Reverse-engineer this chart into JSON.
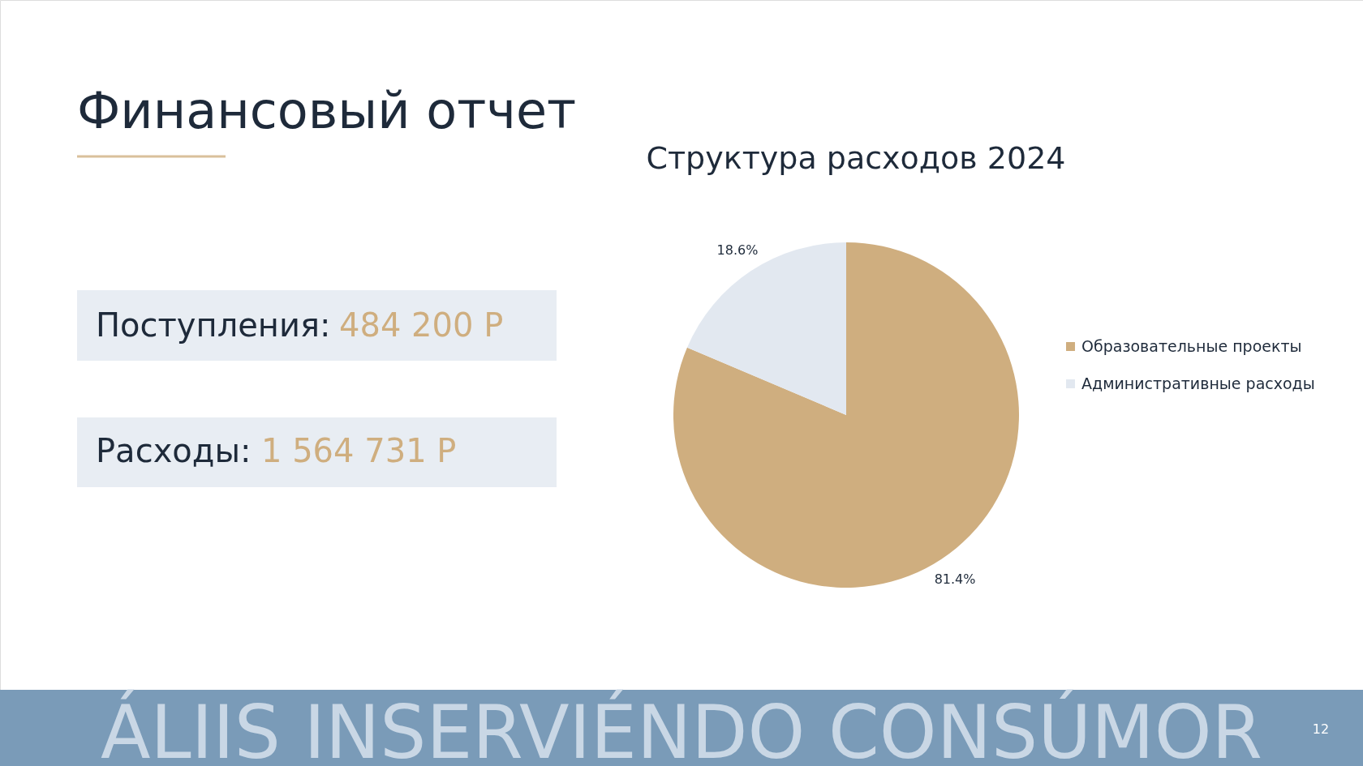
{
  "chart_data": {
    "type": "pie",
    "title": "Финансовый отчет",
    "subtitle": "Структура расходов 2024",
    "categories": [
      "Образовательные проекты",
      "Административные расходы"
    ],
    "values": [
      81.4,
      18.6
    ],
    "colors": [
      "#cfae7f",
      "#e2e8f0"
    ],
    "value_labels": [
      "81.4%",
      "18.6%"
    ],
    "legend": "right",
    "annotations": [
      "Поступления:",
      "484 200 Р",
      "Расходы:",
      "1 564 731 Р",
      "ÁLIIS INSERVIÉNDO CONSÚMOR",
      "12"
    ]
  }
}
